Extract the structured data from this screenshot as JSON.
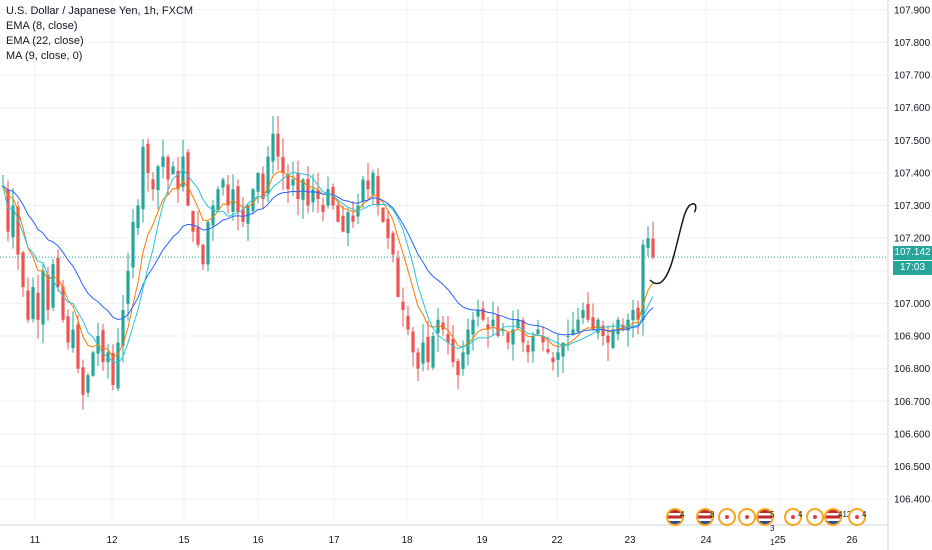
{
  "legend": {
    "symbol": "U.S. Dollar / Japanese Yen, 1h, FXCM",
    "ema8": "EMA (8, close)",
    "ema22": "EMA (22, close)",
    "ma9": "MA (9, close, 0)"
  },
  "price_labels": {
    "last_price": "107.142",
    "countdown": "17:03"
  },
  "events": [
    {
      "icon": "us-flag-icon",
      "count": "4"
    },
    {
      "icon": "us-flag-icon",
      "count": "8"
    },
    {
      "icon": "event-dot-icon",
      "count": ""
    },
    {
      "icon": "event-dot-icon",
      "count": ""
    },
    {
      "icon": "us-flag-icon",
      "count": "5 3 1"
    },
    {
      "icon": "event-dot-icon",
      "count": "4"
    },
    {
      "icon": "event-dot-icon",
      "count": ""
    },
    {
      "icon": "us-flag-icon",
      "count": "412"
    },
    {
      "icon": "event-dot-icon",
      "count": "4"
    }
  ],
  "colors": {
    "up": "#26a69a",
    "down": "#ef5350",
    "ema8": "#f57c00",
    "ema22": "#2962ff",
    "ma9": "#26c6da",
    "price_line": "#26a69a",
    "grid": "#eef0f3"
  },
  "chart_data": {
    "type": "candlestick",
    "title": "U.S. Dollar / Japanese Yen, 1h, FXCM",
    "xlabel": "",
    "ylabel": "",
    "ylim": [
      106.33,
      107.93
    ],
    "grid": true,
    "y_ticks": [
      "107.900",
      "107.800",
      "107.700",
      "107.600",
      "107.500",
      "107.400",
      "107.300",
      "107.200",
      "107.100",
      "107.000",
      "106.900",
      "106.800",
      "106.700",
      "106.600",
      "106.500",
      "106.400"
    ],
    "x_ticks": [
      "11",
      "12",
      "15",
      "16",
      "17",
      "18",
      "19",
      "22",
      "23",
      "24",
      "25",
      "26"
    ],
    "last_price": 107.142,
    "indicators": [
      "EMA (8, close)",
      "EMA (22, close)",
      "MA (9, close, 0)"
    ],
    "close_path": [
      {
        "x": 0,
        "y": 107.36
      },
      {
        "x": 5,
        "y": 107.22
      },
      {
        "x": 10,
        "y": 107.3
      },
      {
        "x": 15,
        "y": 107.15
      },
      {
        "x": 20,
        "y": 107.05
      },
      {
        "x": 25,
        "y": 106.95
      },
      {
        "x": 30,
        "y": 107.05
      },
      {
        "x": 35,
        "y": 106.95
      },
      {
        "x": 40,
        "y": 107.1
      },
      {
        "x": 45,
        "y": 106.98
      },
      {
        "x": 50,
        "y": 107.12
      },
      {
        "x": 55,
        "y": 107.05
      },
      {
        "x": 60,
        "y": 106.95
      },
      {
        "x": 65,
        "y": 106.88
      },
      {
        "x": 70,
        "y": 106.92
      },
      {
        "x": 75,
        "y": 106.8
      },
      {
        "x": 80,
        "y": 106.72
      },
      {
        "x": 85,
        "y": 106.78
      },
      {
        "x": 90,
        "y": 106.85
      },
      {
        "x": 95,
        "y": 106.9
      },
      {
        "x": 100,
        "y": 106.82
      },
      {
        "x": 105,
        "y": 106.85
      },
      {
        "x": 110,
        "y": 106.75
      },
      {
        "x": 115,
        "y": 106.88
      },
      {
        "x": 120,
        "y": 106.98
      },
      {
        "x": 125,
        "y": 107.1
      },
      {
        "x": 130,
        "y": 107.25
      },
      {
        "x": 135,
        "y": 107.3
      },
      {
        "x": 140,
        "y": 107.48
      },
      {
        "x": 145,
        "y": 107.4
      },
      {
        "x": 150,
        "y": 107.35
      },
      {
        "x": 155,
        "y": 107.42
      },
      {
        "x": 160,
        "y": 107.45
      },
      {
        "x": 165,
        "y": 107.38
      },
      {
        "x": 170,
        "y": 107.42
      },
      {
        "x": 175,
        "y": 107.35
      },
      {
        "x": 180,
        "y": 107.45
      },
      {
        "x": 185,
        "y": 107.3
      },
      {
        "x": 190,
        "y": 107.22
      },
      {
        "x": 195,
        "y": 107.18
      },
      {
        "x": 200,
        "y": 107.12
      },
      {
        "x": 205,
        "y": 107.25
      },
      {
        "x": 210,
        "y": 107.3
      },
      {
        "x": 215,
        "y": 107.35
      },
      {
        "x": 220,
        "y": 107.38
      },
      {
        "x": 225,
        "y": 107.3
      },
      {
        "x": 230,
        "y": 107.35
      },
      {
        "x": 235,
        "y": 107.28
      },
      {
        "x": 240,
        "y": 107.25
      },
      {
        "x": 245,
        "y": 107.3
      },
      {
        "x": 250,
        "y": 107.35
      },
      {
        "x": 255,
        "y": 107.4
      },
      {
        "x": 260,
        "y": 107.32
      },
      {
        "x": 265,
        "y": 107.45
      },
      {
        "x": 270,
        "y": 107.52
      },
      {
        "x": 275,
        "y": 107.45
      },
      {
        "x": 280,
        "y": 107.4
      },
      {
        "x": 285,
        "y": 107.35
      },
      {
        "x": 290,
        "y": 107.38
      },
      {
        "x": 295,
        "y": 107.32
      },
      {
        "x": 300,
        "y": 107.38
      },
      {
        "x": 305,
        "y": 107.3
      },
      {
        "x": 310,
        "y": 107.35
      },
      {
        "x": 315,
        "y": 107.32
      },
      {
        "x": 320,
        "y": 107.28
      },
      {
        "x": 325,
        "y": 107.35
      },
      {
        "x": 330,
        "y": 107.3
      },
      {
        "x": 335,
        "y": 107.25
      },
      {
        "x": 340,
        "y": 107.22
      },
      {
        "x": 345,
        "y": 107.28
      },
      {
        "x": 350,
        "y": 107.25
      },
      {
        "x": 355,
        "y": 107.3
      },
      {
        "x": 360,
        "y": 107.38
      },
      {
        "x": 365,
        "y": 107.35
      },
      {
        "x": 370,
        "y": 107.4
      },
      {
        "x": 375,
        "y": 107.3
      },
      {
        "x": 380,
        "y": 107.25
      },
      {
        "x": 385,
        "y": 107.2
      },
      {
        "x": 390,
        "y": 107.15
      },
      {
        "x": 395,
        "y": 107.02
      },
      {
        "x": 400,
        "y": 106.98
      },
      {
        "x": 405,
        "y": 106.92
      },
      {
        "x": 410,
        "y": 106.85
      },
      {
        "x": 415,
        "y": 106.8
      },
      {
        "x": 420,
        "y": 106.88
      },
      {
        "x": 425,
        "y": 106.82
      },
      {
        "x": 430,
        "y": 106.9
      },
      {
        "x": 435,
        "y": 106.95
      },
      {
        "x": 440,
        "y": 106.92
      },
      {
        "x": 445,
        "y": 106.88
      },
      {
        "x": 450,
        "y": 106.82
      },
      {
        "x": 455,
        "y": 106.78
      },
      {
        "x": 460,
        "y": 106.85
      },
      {
        "x": 465,
        "y": 106.92
      },
      {
        "x": 470,
        "y": 106.95
      },
      {
        "x": 475,
        "y": 106.98
      },
      {
        "x": 480,
        "y": 106.95
      },
      {
        "x": 485,
        "y": 106.92
      },
      {
        "x": 490,
        "y": 106.95
      },
      {
        "x": 495,
        "y": 106.9
      },
      {
        "x": 500,
        "y": 106.92
      },
      {
        "x": 505,
        "y": 106.88
      },
      {
        "x": 510,
        "y": 106.92
      },
      {
        "x": 515,
        "y": 106.95
      },
      {
        "x": 520,
        "y": 106.88
      },
      {
        "x": 525,
        "y": 106.85
      },
      {
        "x": 530,
        "y": 106.9
      },
      {
        "x": 535,
        "y": 106.92
      },
      {
        "x": 540,
        "y": 106.88
      },
      {
        "x": 545,
        "y": 106.85
      },
      {
        "x": 550,
        "y": 106.82
      },
      {
        "x": 555,
        "y": 106.85
      },
      {
        "x": 560,
        "y": 106.88
      },
      {
        "x": 565,
        "y": 106.9
      },
      {
        "x": 570,
        "y": 106.92
      },
      {
        "x": 575,
        "y": 106.95
      },
      {
        "x": 580,
        "y": 106.98
      },
      {
        "x": 585,
        "y": 106.95
      },
      {
        "x": 590,
        "y": 106.92
      },
      {
        "x": 595,
        "y": 106.95
      },
      {
        "x": 600,
        "y": 106.9
      },
      {
        "x": 605,
        "y": 106.88
      },
      {
        "x": 610,
        "y": 106.92
      },
      {
        "x": 615,
        "y": 106.95
      },
      {
        "x": 620,
        "y": 106.92
      },
      {
        "x": 625,
        "y": 106.95
      },
      {
        "x": 630,
        "y": 106.98
      },
      {
        "x": 635,
        "y": 106.95
      },
      {
        "x": 640,
        "y": 107.18
      },
      {
        "x": 645,
        "y": 107.2
      },
      {
        "x": 650,
        "y": 107.142
      }
    ]
  }
}
